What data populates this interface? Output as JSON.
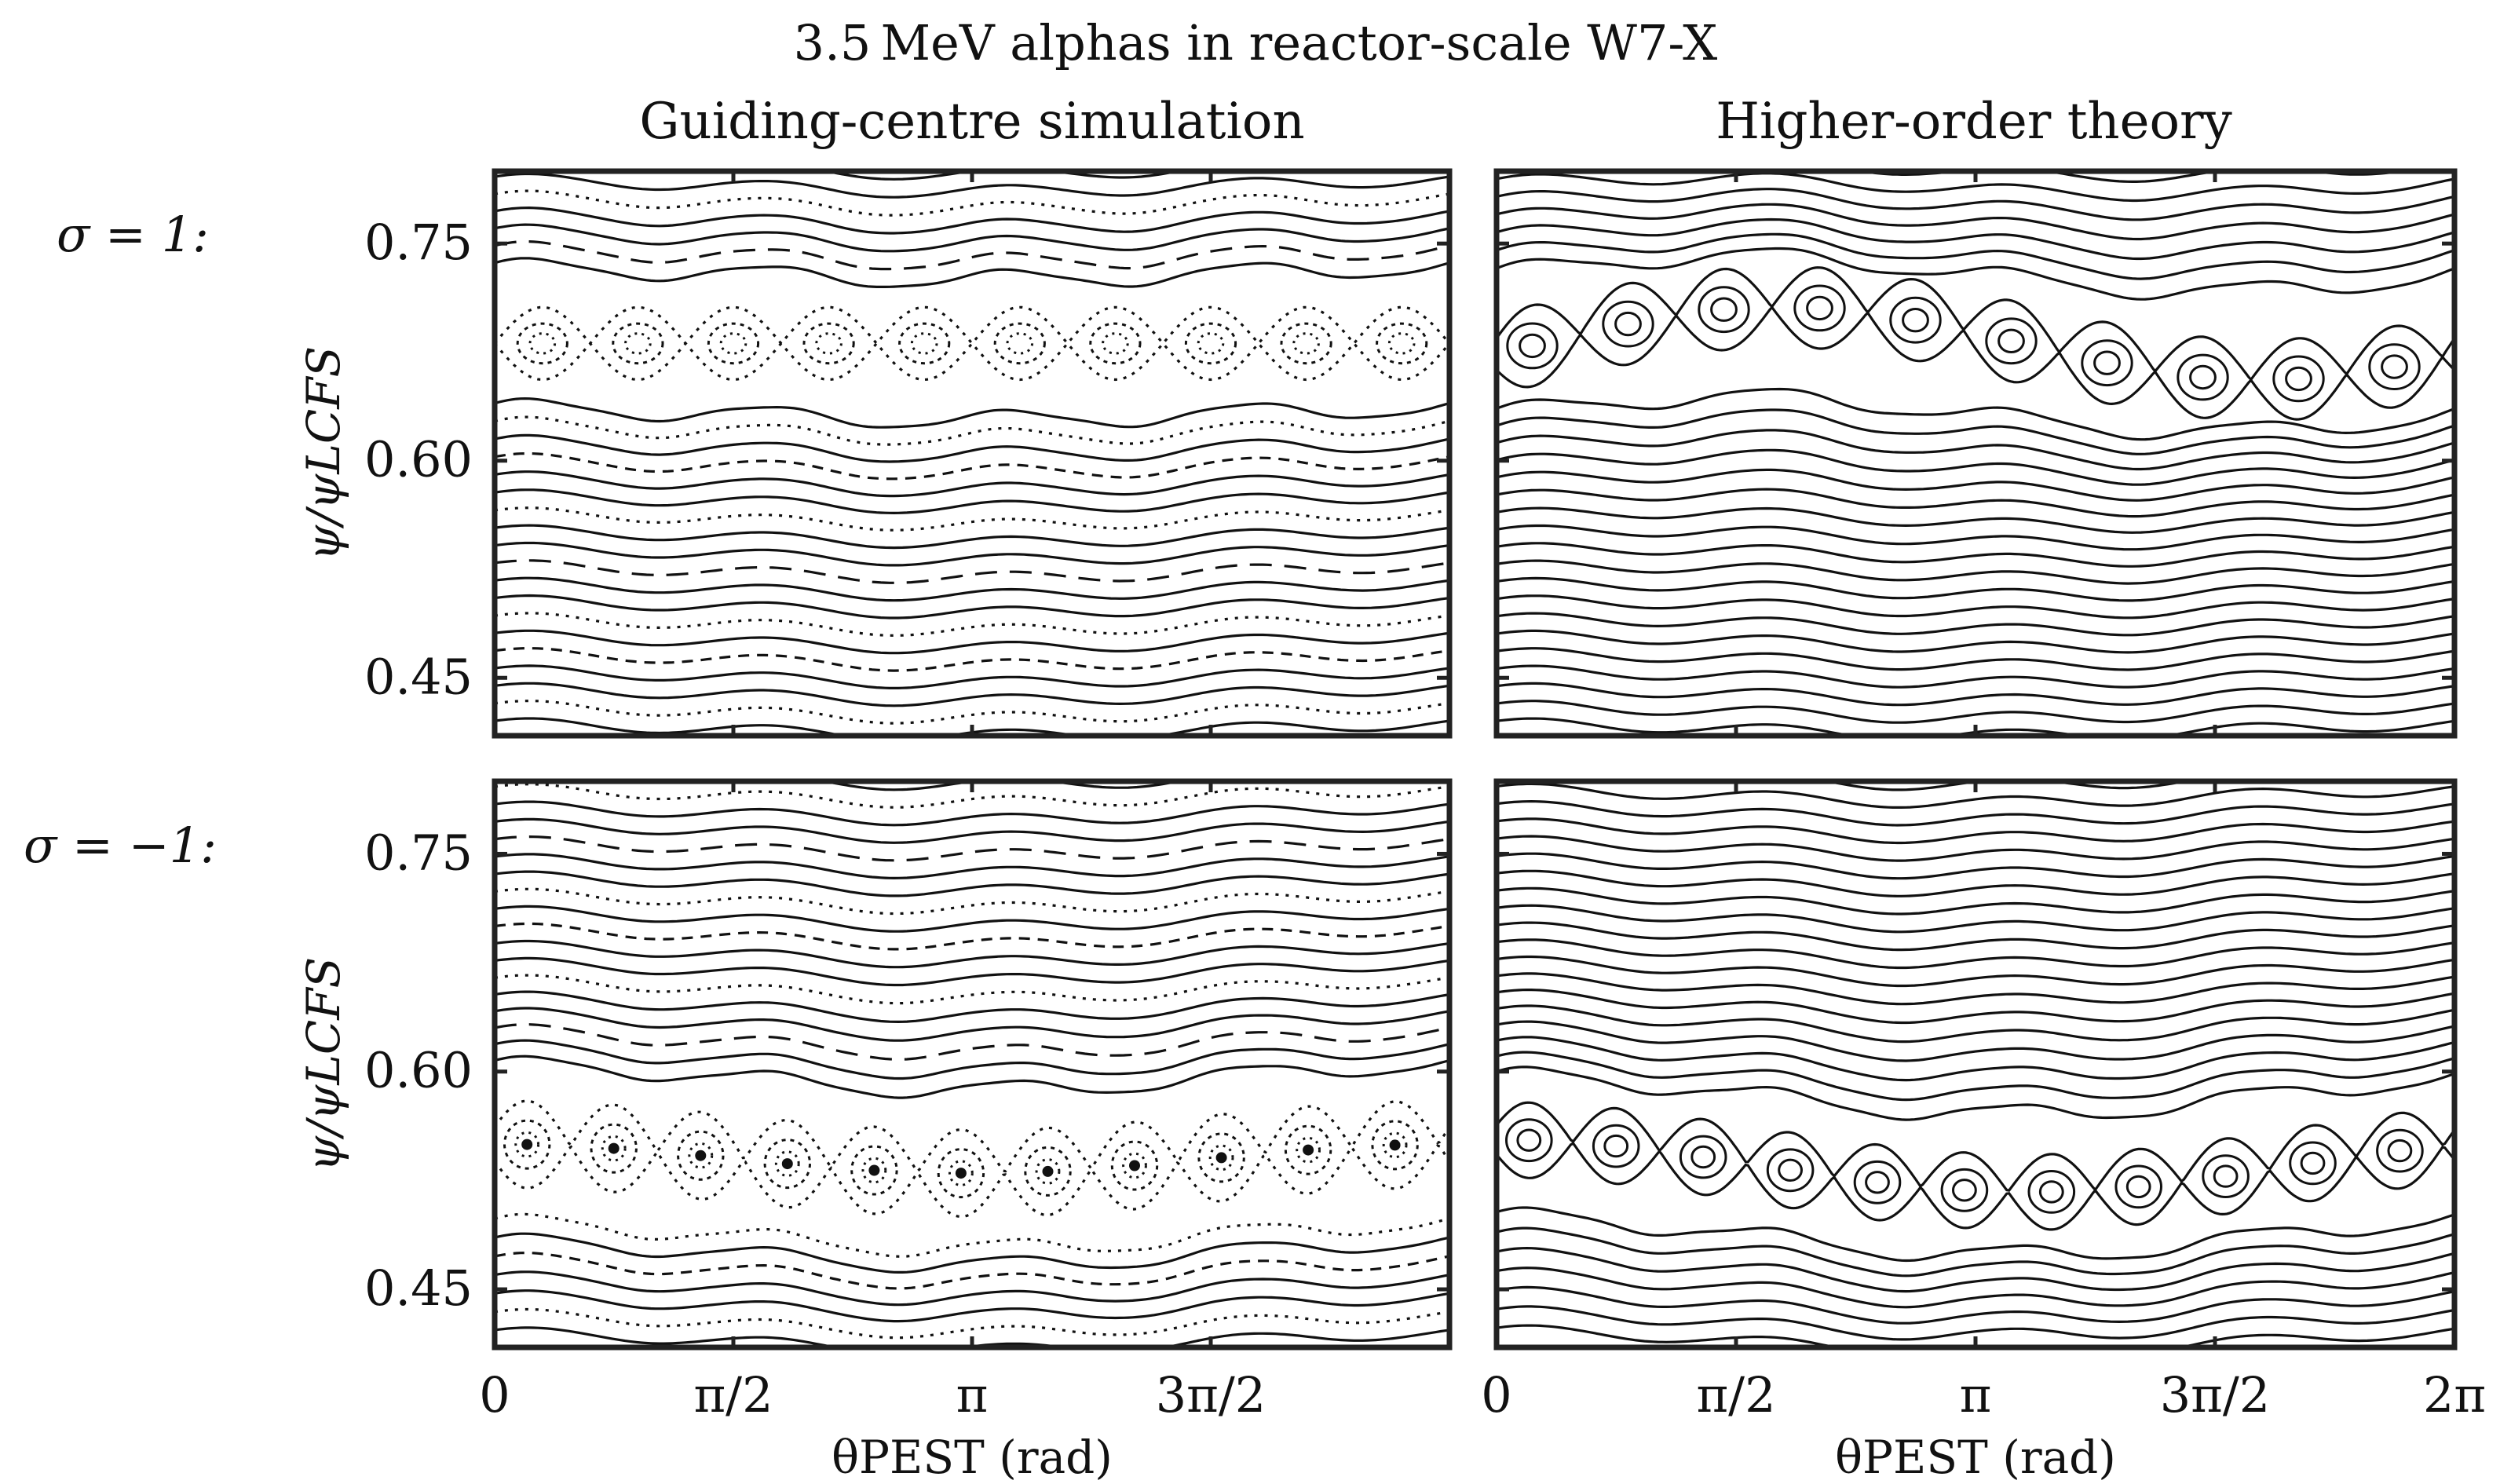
{
  "figure": {
    "title": "3.5 MeV alphas in reactor-scale W7-X",
    "columns": [
      "Guiding-centre simulation",
      "Higher-order theory"
    ],
    "rows": [
      "σ = 1:",
      "σ = −1:"
    ]
  },
  "chart_data": [
    {
      "type": "contour",
      "panel": "guiding-centre, sigma=1",
      "title": "Guiding-centre simulation",
      "row_label": "σ = 1:",
      "xlabel": "θPEST (rad)",
      "ylabel": "ψ/ψLCFS",
      "xlim": [
        0,
        6.2832
      ],
      "ylim": [
        0.41,
        0.8
      ],
      "xticks": [
        "0",
        "π/2",
        "π",
        "3π/2"
      ],
      "yticks": [
        "0.75",
        "0.60",
        "0.45"
      ],
      "island_chain": {
        "psi_center": 0.681,
        "count": 10,
        "width": 0.025
      }
    },
    {
      "type": "contour",
      "panel": "higher-order theory, sigma=1",
      "title": "Higher-order theory",
      "row_label": "σ = 1:",
      "xlabel": "θPEST (rad)",
      "ylabel": "ψ/ψLCFS",
      "xlim": [
        0,
        6.2832
      ],
      "ylim": [
        0.41,
        0.8
      ],
      "xticks": [
        "0",
        "π/2",
        "π",
        "3π/2",
        "2π"
      ],
      "yticks": [
        "0.75",
        "0.60",
        "0.45"
      ],
      "island_chain": {
        "psi_center": 0.681,
        "count": 10,
        "width": 0.028
      }
    },
    {
      "type": "contour",
      "panel": "guiding-centre, sigma=-1",
      "title": "Guiding-centre simulation",
      "row_label": "σ = −1:",
      "xlabel": "θPEST (rad)",
      "ylabel": "ψ/ψLCFS",
      "xlim": [
        0,
        6.2832
      ],
      "ylim": [
        0.41,
        0.8
      ],
      "xticks": [
        "0",
        "π/2",
        "π",
        "3π/2"
      ],
      "yticks": [
        "0.75",
        "0.60",
        "0.45"
      ],
      "island_chain": {
        "psi_center": 0.54,
        "count": 11,
        "width": 0.03
      }
    },
    {
      "type": "contour",
      "panel": "higher-order theory, sigma=-1",
      "title": "Higher-order theory",
      "row_label": "σ = −1:",
      "xlabel": "θPEST (rad)",
      "ylabel": "ψ/ψLCFS",
      "xlim": [
        0,
        6.2832
      ],
      "ylim": [
        0.41,
        0.8
      ],
      "xticks": [
        "0",
        "π/2",
        "π",
        "3π/2",
        "2π"
      ],
      "yticks": [
        "0.75",
        "0.60",
        "0.45"
      ],
      "island_chain": {
        "psi_center": 0.535,
        "count": 11,
        "width": 0.026
      }
    }
  ]
}
